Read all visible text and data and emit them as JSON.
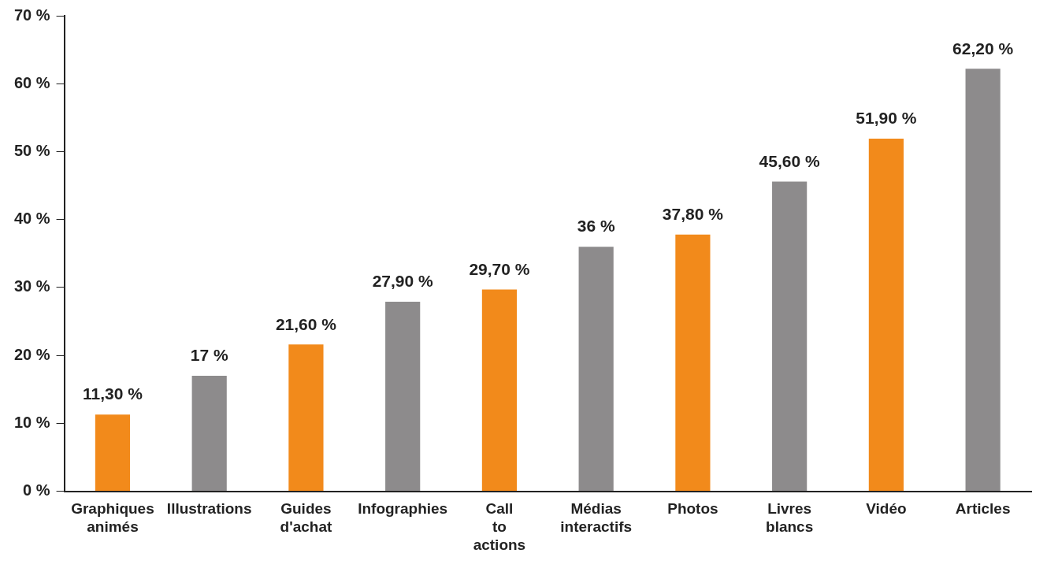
{
  "chart_data": {
    "type": "bar",
    "categories": [
      "Graphiques animés",
      "Illustrations",
      "Guides d'achat",
      "Infographies",
      "Call to actions",
      "Médias interactifs",
      "Photos",
      "Livres blancs",
      "Vidéo",
      "Articles"
    ],
    "values": [
      11.3,
      17,
      21.6,
      27.9,
      29.7,
      36,
      37.8,
      45.6,
      51.9,
      62.2
    ],
    "colors": [
      "#f28a1b",
      "#8d8b8c",
      "#f28a1b",
      "#8d8b8c",
      "#f28a1b",
      "#8d8b8c",
      "#f28a1b",
      "#8d8b8c",
      "#f28a1b",
      "#8d8b8c"
    ],
    "value_labels": [
      "11,30 %",
      "17 %",
      "21,60 %",
      "27,90 %",
      "29,70 %",
      "36 %",
      "37,80 %",
      "45,60 %",
      "51,90 %",
      "62,20 %"
    ],
    "ylim": [
      0,
      70
    ],
    "yticks": [
      {
        "value": 0,
        "label": "0 %"
      },
      {
        "value": 10,
        "label": "10 %"
      },
      {
        "value": 20,
        "label": "20 %"
      },
      {
        "value": 30,
        "label": "30 %"
      },
      {
        "value": 40,
        "label": "40 %"
      },
      {
        "value": 50,
        "label": "50 %"
      },
      {
        "value": 60,
        "label": "60 %"
      },
      {
        "value": 70,
        "label": "70 %"
      }
    ],
    "grid": false,
    "legend": false
  }
}
